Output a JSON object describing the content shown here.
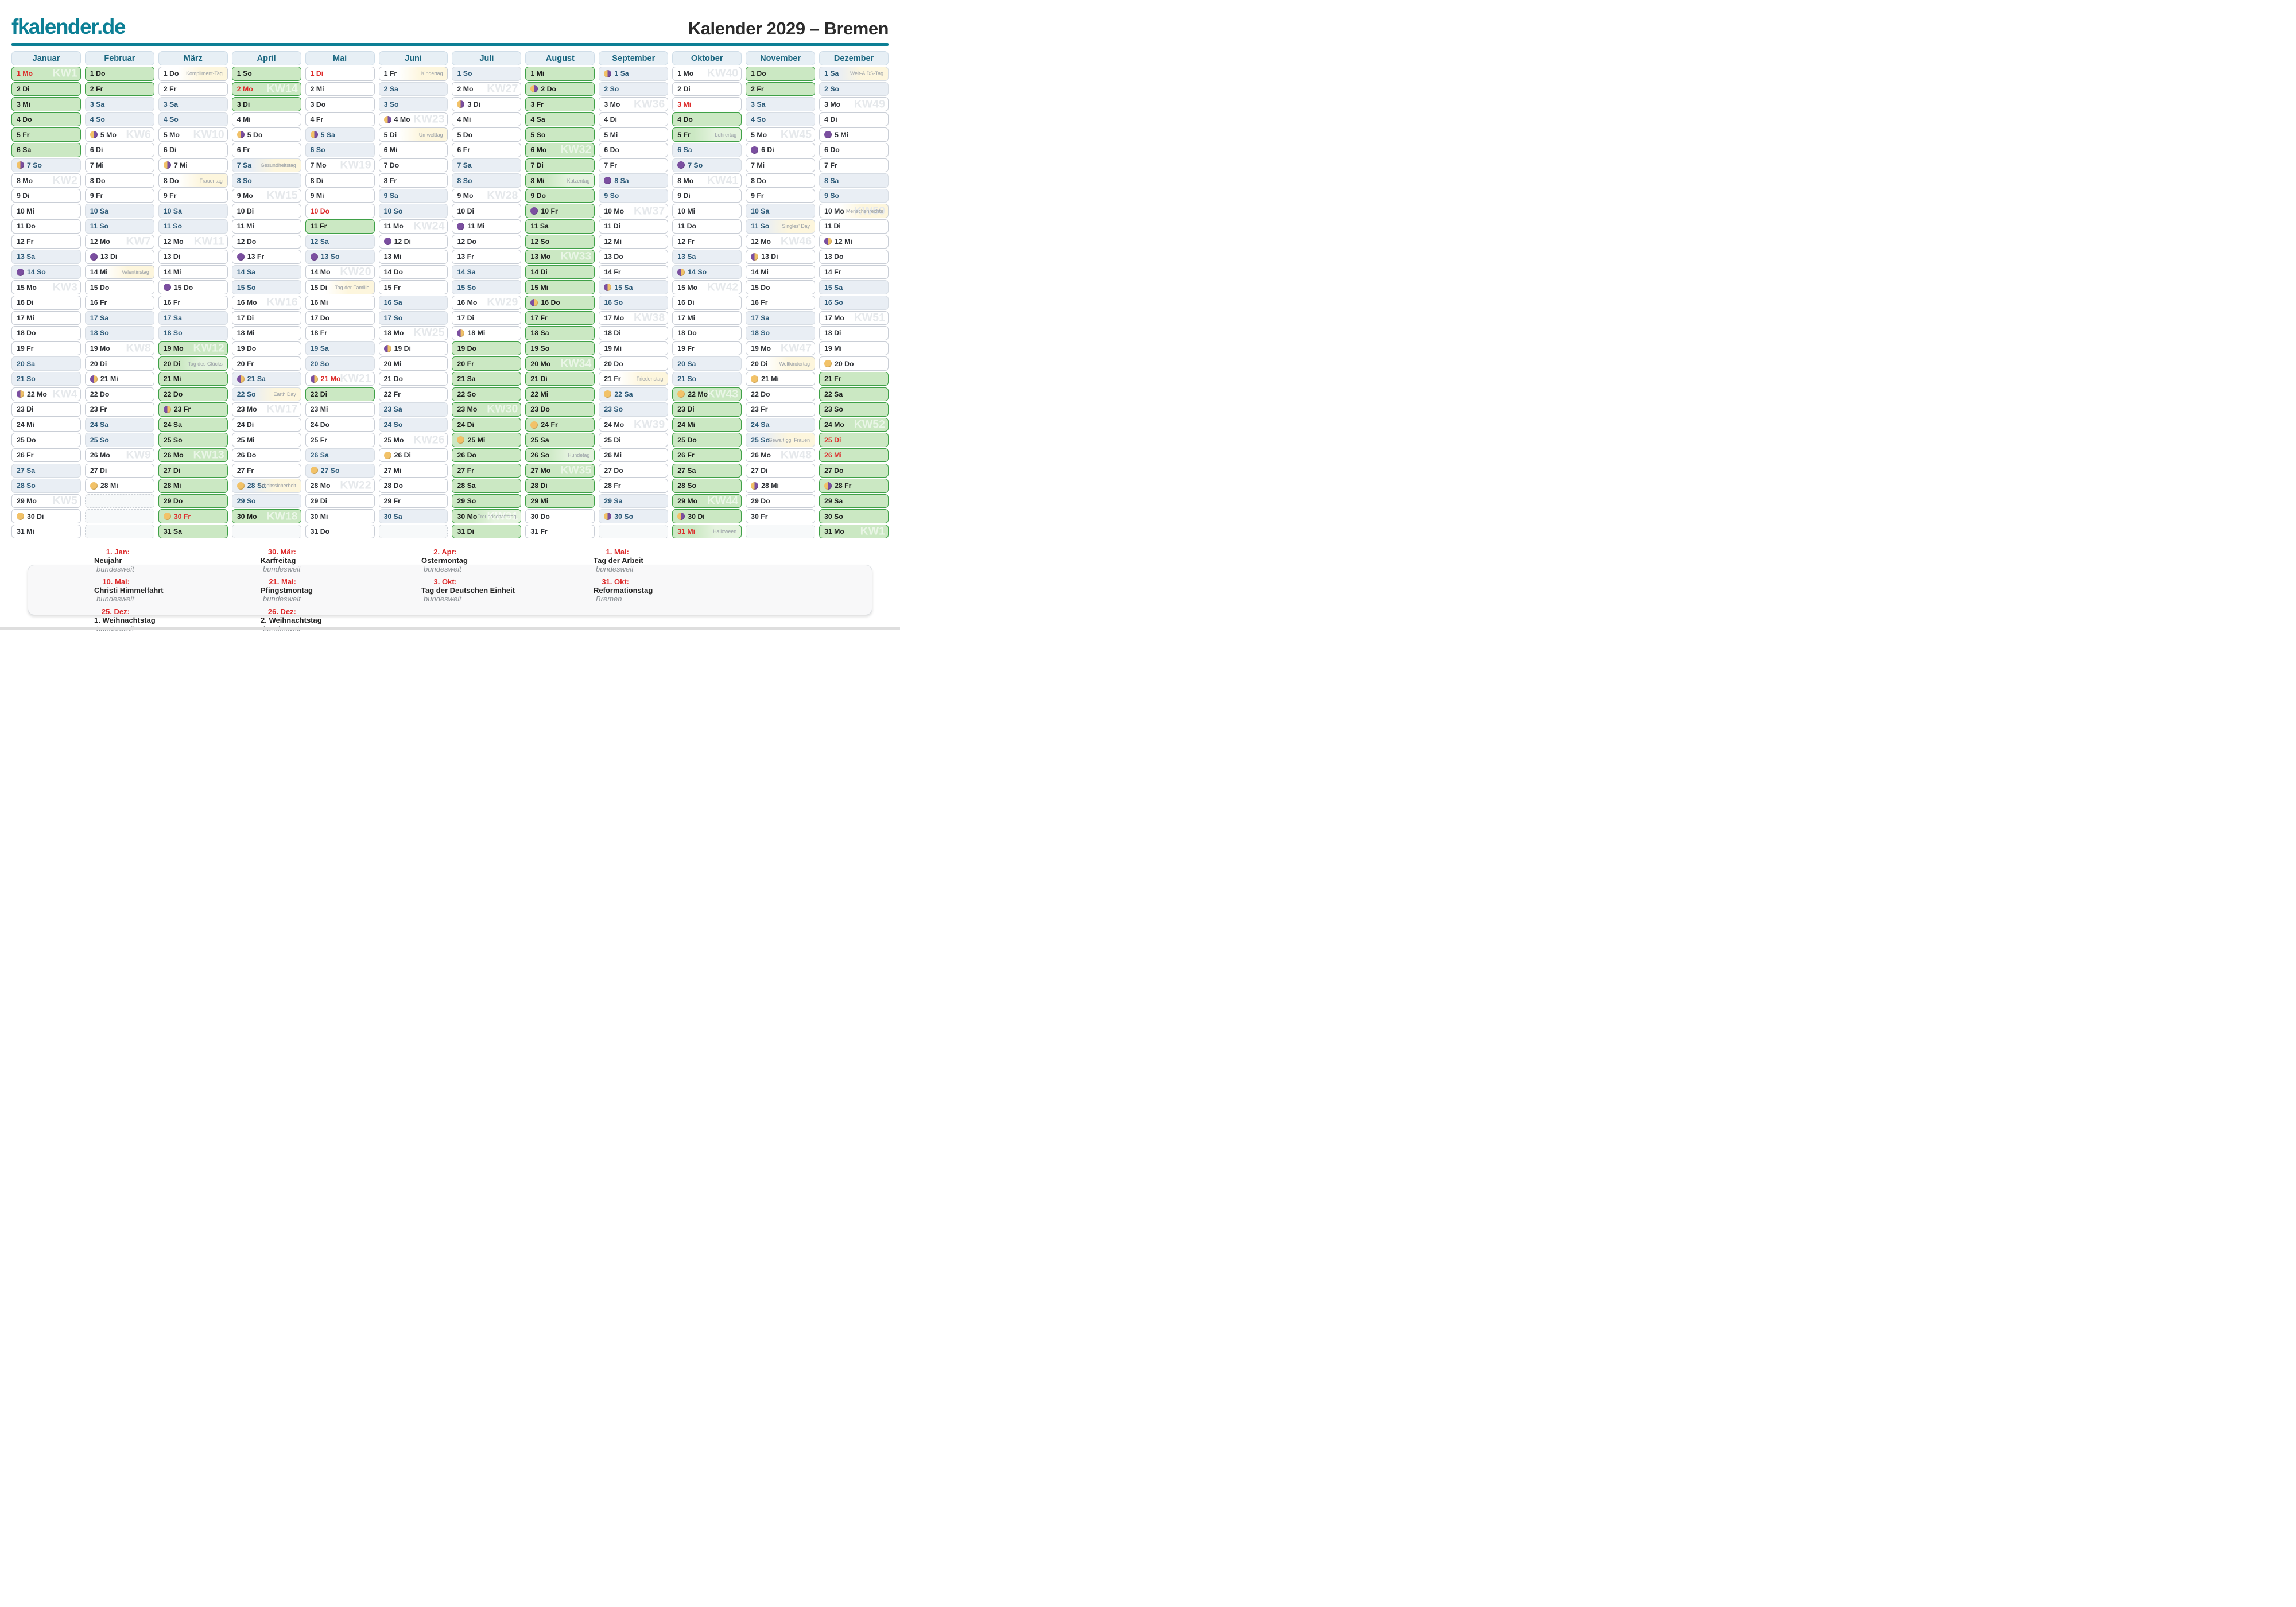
{
  "header": {
    "logo": "fkalender.de",
    "title": "Kalender 2029 – Bremen"
  },
  "weekdays": [
    "Mo",
    "Di",
    "Mi",
    "Do",
    "Fr",
    "Sa",
    "So"
  ],
  "months": [
    {
      "name": "Januar",
      "start": 0,
      "days": 31,
      "kw": {
        "1": "KW1",
        "8": "KW2",
        "15": "KW3",
        "22": "KW4",
        "29": "KW5"
      },
      "holidays": [
        1
      ],
      "vacation": [
        1,
        2,
        3,
        4,
        5,
        6
      ],
      "moons": {
        "7": "lq",
        "14": "nm",
        "22": "fq",
        "30": "fm"
      },
      "notes": {}
    },
    {
      "name": "Februar",
      "start": 3,
      "days": 28,
      "kw": {
        "5": "KW6",
        "12": "KW7",
        "19": "KW8",
        "26": "KW9"
      },
      "holidays": [],
      "vacation": [
        1,
        2
      ],
      "moons": {
        "5": "lq",
        "13": "nm",
        "21": "fq",
        "28": "fm"
      },
      "notes": {
        "14": "Valentinstag"
      }
    },
    {
      "name": "März",
      "start": 3,
      "days": 31,
      "kw": {
        "5": "KW10",
        "12": "KW11",
        "19": "KW12",
        "26": "KW13"
      },
      "holidays": [
        30
      ],
      "vacation": [
        19,
        20,
        21,
        22,
        23,
        24,
        25,
        26,
        27,
        28,
        29,
        30,
        31
      ],
      "moons": {
        "7": "lq",
        "15": "nm",
        "23": "fq",
        "30": "fm"
      },
      "notes": {
        "1": "Kompliment-Tag",
        "8": "Frauentag",
        "20": "Tag des Glücks"
      }
    },
    {
      "name": "April",
      "start": 6,
      "days": 30,
      "kw": {
        "2": "KW14",
        "9": "KW15",
        "16": "KW16",
        "23": "KW17",
        "30": "KW18"
      },
      "holidays": [
        2
      ],
      "vacation": [
        1,
        2,
        3,
        30
      ],
      "moons": {
        "5": "lq",
        "13": "nm",
        "21": "fq",
        "28": "fm"
      },
      "notes": {
        "7": "Gesundheitstag",
        "22": "Earth Day",
        "28": "Arbeitssicherheit"
      }
    },
    {
      "name": "Mai",
      "start": 1,
      "days": 31,
      "kw": {
        "7": "KW19",
        "14": "KW20",
        "21": "KW21",
        "28": "KW22"
      },
      "holidays": [
        1,
        10,
        21
      ],
      "vacation": [
        11,
        22
      ],
      "moons": {
        "5": "lq",
        "13": "nm",
        "21": "fq",
        "27": "fm"
      },
      "notes": {
        "15": "Tag der Familie"
      }
    },
    {
      "name": "Juni",
      "start": 4,
      "days": 30,
      "kw": {
        "4": "KW23",
        "11": "KW24",
        "18": "KW25",
        "25": "KW26"
      },
      "holidays": [],
      "vacation": [],
      "moons": {
        "4": "lq",
        "12": "nm",
        "19": "fq",
        "26": "fm"
      },
      "notes": {
        "1": "Kindertag",
        "5": "Umwelttag"
      }
    },
    {
      "name": "Juli",
      "start": 6,
      "days": 31,
      "kw": {
        "2": "KW27",
        "9": "KW28",
        "16": "KW29",
        "23": "KW30",
        "30": "KW31"
      },
      "holidays": [],
      "vacation": [
        19,
        20,
        21,
        22,
        23,
        24,
        25,
        26,
        27,
        28,
        29,
        30,
        31
      ],
      "moons": {
        "3": "lq",
        "11": "nm",
        "18": "fq",
        "25": "fm"
      },
      "notes": {
        "30": "Freundschaftstag"
      }
    },
    {
      "name": "August",
      "start": 2,
      "days": 31,
      "kw": {
        "6": "KW32",
        "13": "KW33",
        "20": "KW34",
        "27": "KW35"
      },
      "holidays": [],
      "vacation": [
        1,
        2,
        3,
        4,
        5,
        6,
        7,
        8,
        9,
        10,
        11,
        12,
        13,
        14,
        15,
        16,
        17,
        18,
        19,
        20,
        21,
        22,
        23,
        24,
        25,
        26,
        27,
        28,
        29
      ],
      "moons": {
        "2": "lq",
        "10": "nm",
        "16": "fq",
        "24": "fm"
      },
      "notes": {
        "8": "Katzentag",
        "26": "Hundetag"
      }
    },
    {
      "name": "September",
      "start": 5,
      "days": 30,
      "kw": {
        "3": "KW36",
        "10": "KW37",
        "17": "KW38",
        "24": "KW39"
      },
      "holidays": [],
      "vacation": [],
      "moons": {
        "1": "lq",
        "8": "nm",
        "15": "fq",
        "22": "fm",
        "30": "lq"
      },
      "notes": {
        "21": "Friedenstag"
      }
    },
    {
      "name": "Oktober",
      "start": 0,
      "days": 31,
      "kw": {
        "1": "KW40",
        "8": "KW41",
        "15": "KW42",
        "22": "KW43",
        "29": "KW44"
      },
      "holidays": [
        3,
        31
      ],
      "vacation": [
        4,
        5,
        22,
        23,
        24,
        25,
        26,
        27,
        28,
        29,
        30,
        31
      ],
      "moons": {
        "7": "nm",
        "14": "fq",
        "22": "fm",
        "30": "lq"
      },
      "notes": {
        "5": "Lehrertag",
        "31": "Halloween"
      }
    },
    {
      "name": "November",
      "start": 3,
      "days": 30,
      "kw": {
        "5": "KW45",
        "12": "KW46",
        "19": "KW47",
        "26": "KW48"
      },
      "holidays": [],
      "vacation": [
        1,
        2
      ],
      "moons": {
        "6": "nm",
        "13": "fq",
        "21": "fm",
        "28": "lq"
      },
      "notes": {
        "11": "Singles' Day",
        "20": "Weltkindertag",
        "25": "Gewalt gg. Frauen"
      }
    },
    {
      "name": "Dezember",
      "start": 5,
      "days": 31,
      "kw": {
        "3": "KW49",
        "10": "KW50",
        "17": "KW51",
        "24": "KW52",
        "31": "KW1"
      },
      "holidays": [
        25,
        26
      ],
      "vacation": [
        21,
        22,
        23,
        24,
        25,
        26,
        27,
        28,
        29,
        30,
        31
      ],
      "moons": {
        "5": "nm",
        "12": "fq",
        "20": "fm",
        "28": "lq"
      },
      "notes": {
        "1": "Welt-AIDS-Tag",
        "10": "Menschenrechte"
      }
    }
  ],
  "legend": {
    "rows": [
      [
        {
          "date": "1. Jan:",
          "name": "Neujahr",
          "region": "bundesweit"
        },
        {
          "date": "30. Mär:",
          "name": "Karfreitag",
          "region": "bundesweit"
        },
        {
          "date": "2. Apr:",
          "name": "Ostermontag",
          "region": "bundesweit"
        },
        {
          "date": "1. Mai:",
          "name": "Tag der Arbeit",
          "region": "bundesweit"
        }
      ],
      [
        {
          "date": "10. Mai:",
          "name": "Christi Himmelfahrt",
          "region": "bundesweit"
        },
        {
          "date": "21. Mai:",
          "name": "Pfingstmontag",
          "region": "bundesweit"
        },
        {
          "date": "3. Okt:",
          "name": "Tag der Deutschen Einheit",
          "region": "bundesweit"
        },
        {
          "date": "31. Okt:",
          "name": "Reformationstag",
          "region": "Bremen"
        }
      ],
      [
        {
          "date": "25. Dez:",
          "name": "1. Weihnachtstag",
          "region": "bundesweit"
        },
        {
          "date": "26. Dez:",
          "name": "2. Weihnachtstag",
          "region": "bundesweit"
        },
        null,
        null
      ]
    ]
  },
  "colors": {
    "accent_teal": "#0c7f95",
    "holiday_red": "#dd2b2b",
    "vacation_fill": "#cbe8c3",
    "vacation_border": "#3fa047",
    "weekend_fill": "#e9eef4",
    "weekend_text": "#2d5a78",
    "note_fill": "#fdf6dd",
    "kw_watermark": "#e6e9ec",
    "month_header_fill": "#e7eff5",
    "month_header_text": "#19657f",
    "moon_purple": "#7b4fa0",
    "moon_orange": "#f2c268"
  }
}
